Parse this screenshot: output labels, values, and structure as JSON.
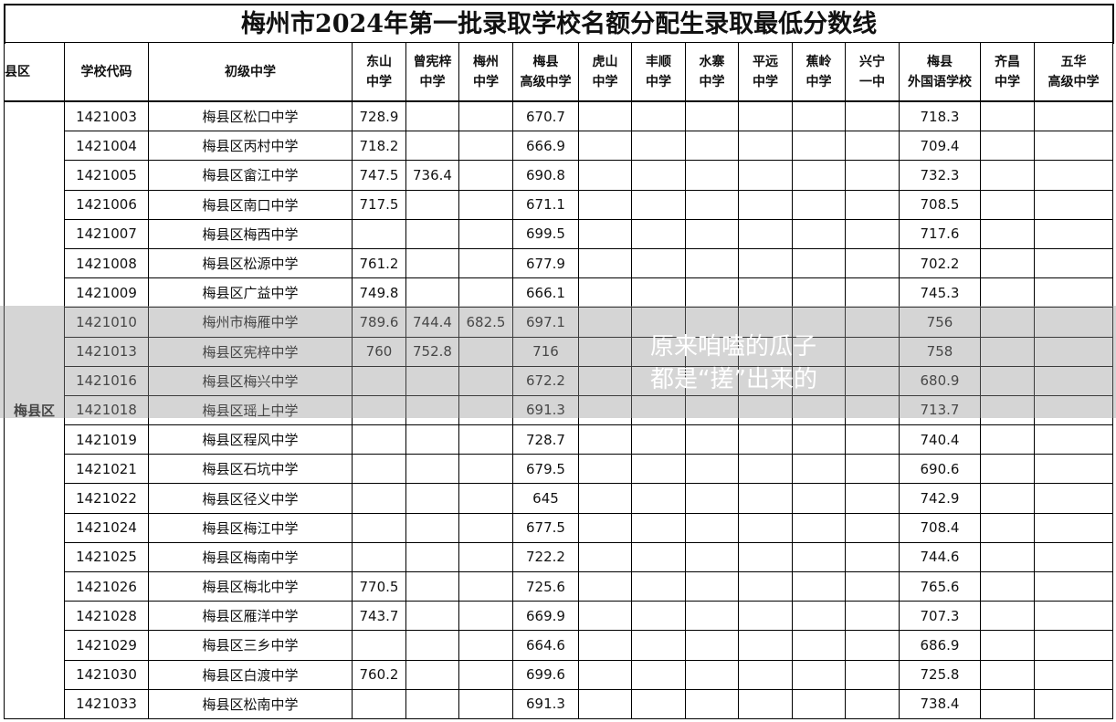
{
  "title": "梅州市2024年第一批录取学校名额分配生录取最低分数线",
  "headers": [
    "县区",
    "学校代码",
    "初级中学",
    "东山\n中学",
    "曾宪梓\n中学",
    "梅州\n中学",
    "梅县\n高级中学",
    "虎山\n中学",
    "丰顺\n中学",
    "水寨\n中学",
    "平远\n中学",
    "蕉岭\n中学",
    "兴宁\n一中",
    "梅县\n外国语学校",
    "齐昌\n中学",
    "五华\n高级中学"
  ],
  "county": "梅县区",
  "rows": [
    [
      "1421003",
      "梅县区松口中学",
      "728.9",
      "",
      "",
      "670.7",
      "",
      "",
      "",
      "",
      "",
      "",
      "718.3",
      "",
      ""
    ],
    [
      "1421004",
      "梅县区丙村中学",
      "718.2",
      "",
      "",
      "666.9",
      "",
      "",
      "",
      "",
      "",
      "",
      "709.4",
      "",
      ""
    ],
    [
      "1421005",
      "梅县区畲江中学",
      "747.5",
      "736.4",
      "",
      "690.8",
      "",
      "",
      "",
      "",
      "",
      "",
      "732.3",
      "",
      ""
    ],
    [
      "1421006",
      "梅县区南口中学",
      "717.5",
      "",
      "",
      "671.1",
      "",
      "",
      "",
      "",
      "",
      "",
      "708.5",
      "",
      ""
    ],
    [
      "1421007",
      "梅县区梅西中学",
      "",
      "",
      "",
      "699.5",
      "",
      "",
      "",
      "",
      "",
      "",
      "717.6",
      "",
      ""
    ],
    [
      "1421008",
      "梅县区松源中学",
      "761.2",
      "",
      "",
      "677.9",
      "",
      "",
      "",
      "",
      "",
      "",
      "702.2",
      "",
      ""
    ],
    [
      "1421009",
      "梅县区广益中学",
      "749.8",
      "",
      "",
      "666.1",
      "",
      "",
      "",
      "",
      "",
      "",
      "745.3",
      "",
      ""
    ],
    [
      "1421010",
      "梅州市梅雁中学",
      "789.6",
      "744.4",
      "682.5",
      "697.1",
      "",
      "",
      "",
      "",
      "",
      "",
      "756",
      "",
      ""
    ],
    [
      "1421013",
      "梅县区宪梓中学",
      "760",
      "752.8",
      "",
      "716",
      "",
      "",
      "",
      "",
      "",
      "",
      "758",
      "",
      ""
    ],
    [
      "1421016",
      "梅县区梅兴中学",
      "",
      "",
      "",
      "672.2",
      "",
      "",
      "",
      "",
      "",
      "",
      "680.9",
      "",
      ""
    ],
    [
      "1421018",
      "梅县区瑶上中学",
      "",
      "",
      "",
      "691.3",
      "",
      "",
      "",
      "",
      "",
      "",
      "713.7",
      "",
      ""
    ],
    [
      "1421019",
      "梅县区程风中学",
      "",
      "",
      "",
      "728.7",
      "",
      "",
      "",
      "",
      "",
      "",
      "740.4",
      "",
      ""
    ],
    [
      "1421021",
      "梅县区石坑中学",
      "",
      "",
      "",
      "679.5",
      "",
      "",
      "",
      "",
      "",
      "",
      "690.6",
      "",
      ""
    ],
    [
      "1421022",
      "梅县区径义中学",
      "",
      "",
      "",
      "645",
      "",
      "",
      "",
      "",
      "",
      "",
      "742.9",
      "",
      ""
    ],
    [
      "1421024",
      "梅县区梅江中学",
      "",
      "",
      "",
      "677.5",
      "",
      "",
      "",
      "",
      "",
      "",
      "708.4",
      "",
      ""
    ],
    [
      "1421025",
      "梅县区梅南中学",
      "",
      "",
      "",
      "722.2",
      "",
      "",
      "",
      "",
      "",
      "",
      "744.6",
      "",
      ""
    ],
    [
      "1421026",
      "梅县区梅北中学",
      "770.5",
      "",
      "",
      "725.6",
      "",
      "",
      "",
      "",
      "",
      "",
      "765.6",
      "",
      ""
    ],
    [
      "1421028",
      "梅县区雁洋中学",
      "743.7",
      "",
      "",
      "669.9",
      "",
      "",
      "",
      "",
      "",
      "",
      "707.3",
      "",
      ""
    ],
    [
      "1421029",
      "梅县区三乡中学",
      "",
      "",
      "",
      "664.6",
      "",
      "",
      "",
      "",
      "",
      "",
      "686.9",
      "",
      ""
    ],
    [
      "1421030",
      "梅县区白渡中学",
      "760.2",
      "",
      "",
      "699.6",
      "",
      "",
      "",
      "",
      "",
      "",
      "725.8",
      "",
      ""
    ],
    [
      "1421033",
      "梅县区松南中学",
      "",
      "",
      "",
      "691.3",
      "",
      "",
      "",
      "",
      "",
      "",
      "738.4",
      "",
      ""
    ]
  ],
  "watermark": "原来咱嗑的瓜子都是“搓”出来的"
}
